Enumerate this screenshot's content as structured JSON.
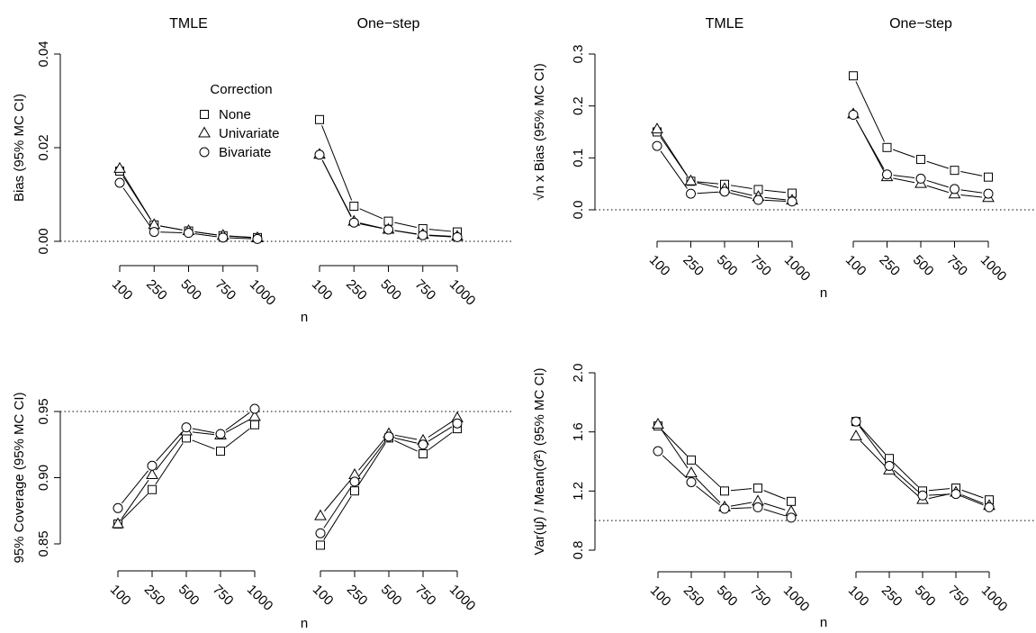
{
  "chart_data": [
    {
      "type": "line",
      "ylabel": "Bias (95% MC CI)",
      "xlabel": "n",
      "ylim": [
        0,
        0.04
      ],
      "yticks": [
        "0.00",
        "0.02",
        "0.04"
      ],
      "reference_line": 0,
      "panels": [
        "TMLE",
        "One−step"
      ],
      "x": [
        "100",
        "250",
        "500",
        "750",
        "1000"
      ],
      "legend": {
        "title": "Correction",
        "position": "inside-top"
      },
      "series": [
        {
          "name": "None",
          "marker": "square",
          "TMLE": [
            0.015,
            0.0035,
            0.0022,
            0.0012,
            0.0008
          ],
          "One−step": [
            0.026,
            0.0075,
            0.0043,
            0.0027,
            0.002
          ]
        },
        {
          "name": "Univariate",
          "marker": "triangle",
          "TMLE": [
            0.0155,
            0.0035,
            0.0022,
            0.0012,
            0.0007
          ],
          "One−step": [
            0.0185,
            0.0042,
            0.0025,
            0.0014,
            0.001
          ]
        },
        {
          "name": "Bivariate",
          "marker": "circle",
          "TMLE": [
            0.0125,
            0.002,
            0.0018,
            0.0008,
            0.0005
          ],
          "One−step": [
            0.0185,
            0.004,
            0.0025,
            0.0013,
            0.0009
          ]
        }
      ]
    },
    {
      "type": "line",
      "ylabel": "√n x Bias (95% MC CI)",
      "xlabel": "n",
      "ylim": [
        0,
        0.3
      ],
      "yticks": [
        "0.0",
        "0.1",
        "0.2",
        "0.3"
      ],
      "reference_line": 0,
      "panels": [
        "TMLE",
        "One−step"
      ],
      "x": [
        "100",
        "250",
        "500",
        "750",
        "1000"
      ],
      "series": [
        {
          "name": "None",
          "marker": "square",
          "TMLE": [
            0.15,
            0.055,
            0.049,
            0.039,
            0.032
          ],
          "One−step": [
            0.258,
            0.12,
            0.097,
            0.076,
            0.063
          ]
        },
        {
          "name": "Univariate",
          "marker": "triangle",
          "TMLE": [
            0.155,
            0.055,
            0.04,
            0.025,
            0.018
          ],
          "One−step": [
            0.184,
            0.063,
            0.05,
            0.03,
            0.023
          ]
        },
        {
          "name": "Bivariate",
          "marker": "circle",
          "TMLE": [
            0.123,
            0.031,
            0.035,
            0.019,
            0.016
          ],
          "One−step": [
            0.183,
            0.068,
            0.06,
            0.04,
            0.031
          ]
        }
      ]
    },
    {
      "type": "line",
      "ylabel": "95% Coverage (95% MC CI)",
      "xlabel": "n",
      "ylim": [
        0.85,
        0.95
      ],
      "yticks": [
        "0.85",
        "0.90",
        "0.95"
      ],
      "reference_line": 0.95,
      "panels": [
        "TMLE",
        "One−step"
      ],
      "x": [
        "100",
        "250",
        "500",
        "750",
        "1000"
      ],
      "series": [
        {
          "name": "None",
          "marker": "square",
          "TMLE": [
            0.865,
            0.891,
            0.93,
            0.92,
            0.94
          ],
          "One−step": [
            0.849,
            0.89,
            0.93,
            0.918,
            0.937
          ]
        },
        {
          "name": "Univariate",
          "marker": "triangle",
          "TMLE": [
            0.865,
            0.902,
            0.935,
            0.932,
            0.946
          ],
          "One−step": [
            0.871,
            0.902,
            0.933,
            0.928,
            0.945
          ]
        },
        {
          "name": "Bivariate",
          "marker": "circle",
          "TMLE": [
            0.877,
            0.909,
            0.938,
            0.933,
            0.952
          ],
          "One−step": [
            0.858,
            0.897,
            0.931,
            0.925,
            0.941
          ]
        }
      ]
    },
    {
      "type": "line",
      "ylabel": "Var(ψ̂) / Mean(σ̂²) (95% MC CI)",
      "xlabel": "n",
      "ylim": [
        0.8,
        2.0
      ],
      "yticks": [
        "0.8",
        "1.2",
        "1.6",
        "2.0"
      ],
      "reference_line": 1.0,
      "panels": [
        "TMLE",
        "One−step"
      ],
      "x": [
        "100",
        "250",
        "500",
        "750",
        "1000"
      ],
      "series": [
        {
          "name": "None",
          "marker": "square",
          "TMLE": [
            1.64,
            1.41,
            1.2,
            1.22,
            1.13
          ],
          "One−step": [
            1.67,
            1.42,
            1.2,
            1.22,
            1.14
          ]
        },
        {
          "name": "Univariate",
          "marker": "triangle",
          "TMLE": [
            1.65,
            1.32,
            1.09,
            1.13,
            1.06
          ],
          "One−step": [
            1.57,
            1.34,
            1.14,
            1.19,
            1.1
          ]
        },
        {
          "name": "Bivariate",
          "marker": "circle",
          "TMLE": [
            1.47,
            1.26,
            1.08,
            1.09,
            1.02
          ],
          "One−step": [
            1.67,
            1.37,
            1.17,
            1.18,
            1.09
          ]
        }
      ]
    }
  ]
}
